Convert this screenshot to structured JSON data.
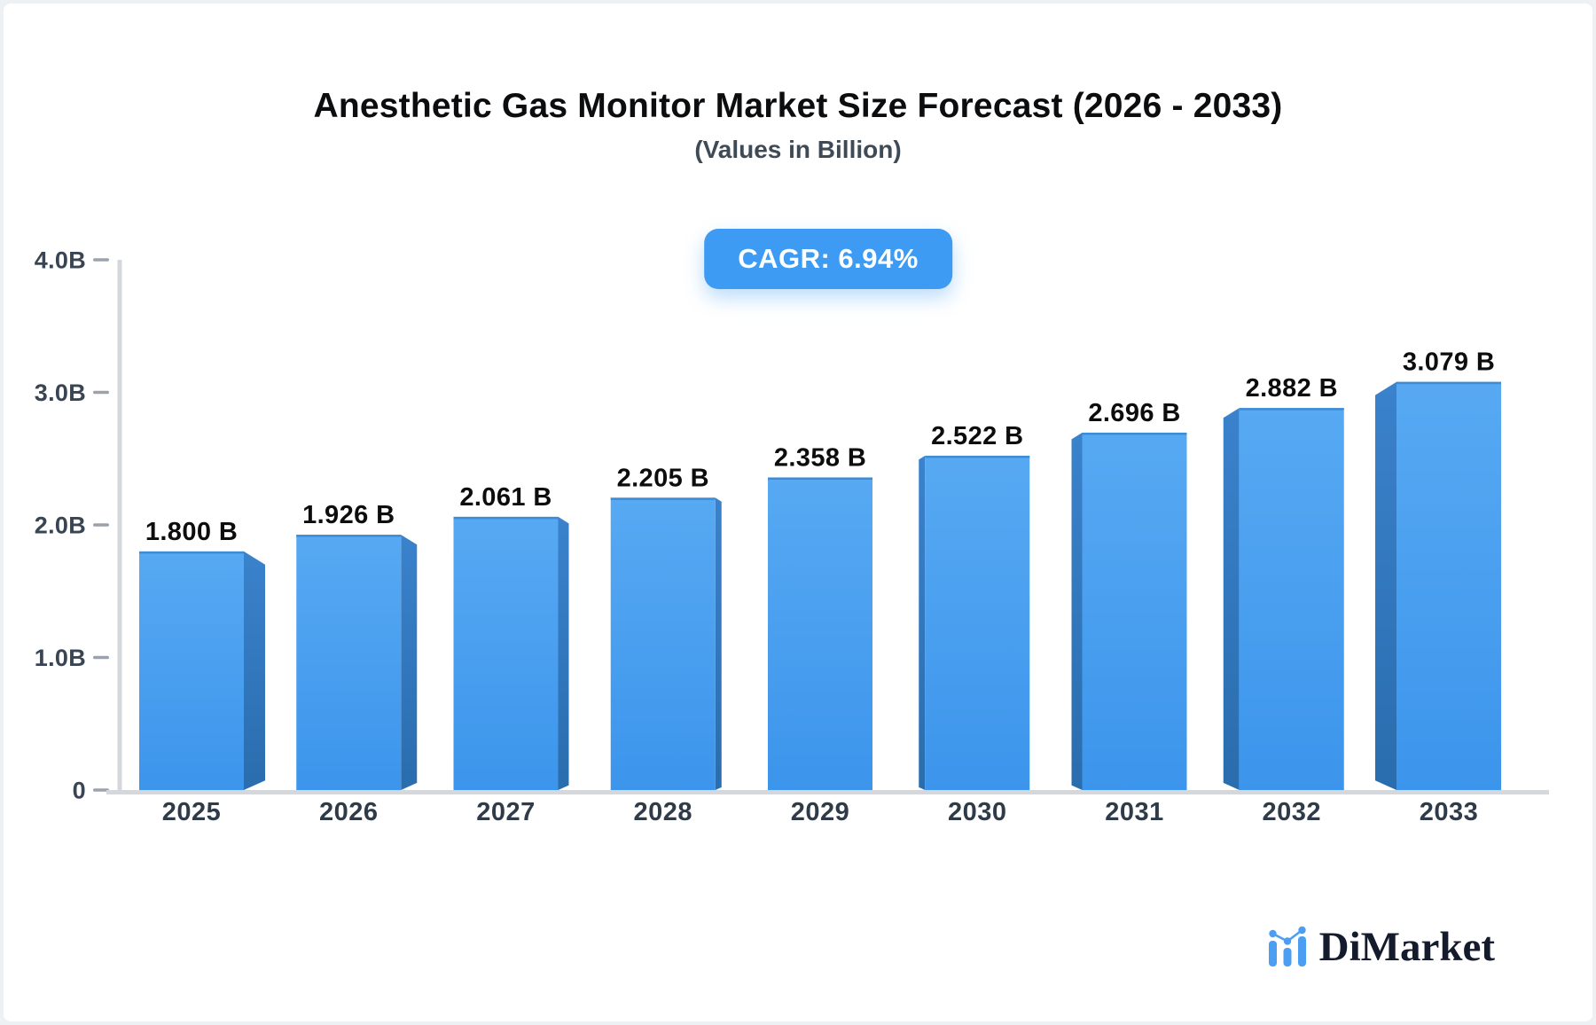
{
  "header": {
    "title": "Anesthetic Gas Monitor Market Size Forecast (2026 - 2033)",
    "subtitle": "(Values in Billion)",
    "cagr_label": "CAGR: 6.94%"
  },
  "chart_data": {
    "type": "bar",
    "title": "Anesthetic Gas Monitor Market Size Forecast (2026 - 2033)",
    "subtitle": "(Values in Billion)",
    "cagr": "6.94%",
    "categories": [
      "2025",
      "2026",
      "2027",
      "2028",
      "2029",
      "2030",
      "2031",
      "2032",
      "2033"
    ],
    "values": [
      1.8,
      1.926,
      2.061,
      2.205,
      2.358,
      2.522,
      2.696,
      2.882,
      3.079
    ],
    "value_labels": [
      "1.800 B",
      "1.926 B",
      "2.061 B",
      "2.205 B",
      "2.358 B",
      "2.522 B",
      "2.696 B",
      "2.882 B",
      "3.079 B"
    ],
    "xlabel": "",
    "ylabel": "",
    "ylim": [
      0,
      4
    ],
    "y_ticks": [
      {
        "value": 0,
        "label": "0"
      },
      {
        "value": 1,
        "label": "1.0B"
      },
      {
        "value": 2,
        "label": "2.0B"
      },
      {
        "value": 3,
        "label": "3.0B"
      },
      {
        "value": 4,
        "label": "4.0B"
      }
    ],
    "grid": false,
    "legend": null,
    "bar_style": "3d-extruded"
  },
  "branding": {
    "logo_text": "DiMarket",
    "logo_icon": "bar-chart-with-dots-icon"
  },
  "colors": {
    "bar_face_top": "#57a9f2",
    "bar_face_bottom": "#3c95ec",
    "bar_top_edge": "#3f8cd6",
    "bar_side_top": "#3a82cc",
    "bar_side_bottom": "#2a6dae",
    "badge_bg": "#3e9bf4",
    "axis_line": "#d4d8dd",
    "tick_dash": "#9aa3ad",
    "y_label": "#3a4553",
    "x_label": "#2f3b49",
    "value_label": "#0d0d0d",
    "logo_icon": "#4c9ef3",
    "logo_text": "#141b2c"
  }
}
